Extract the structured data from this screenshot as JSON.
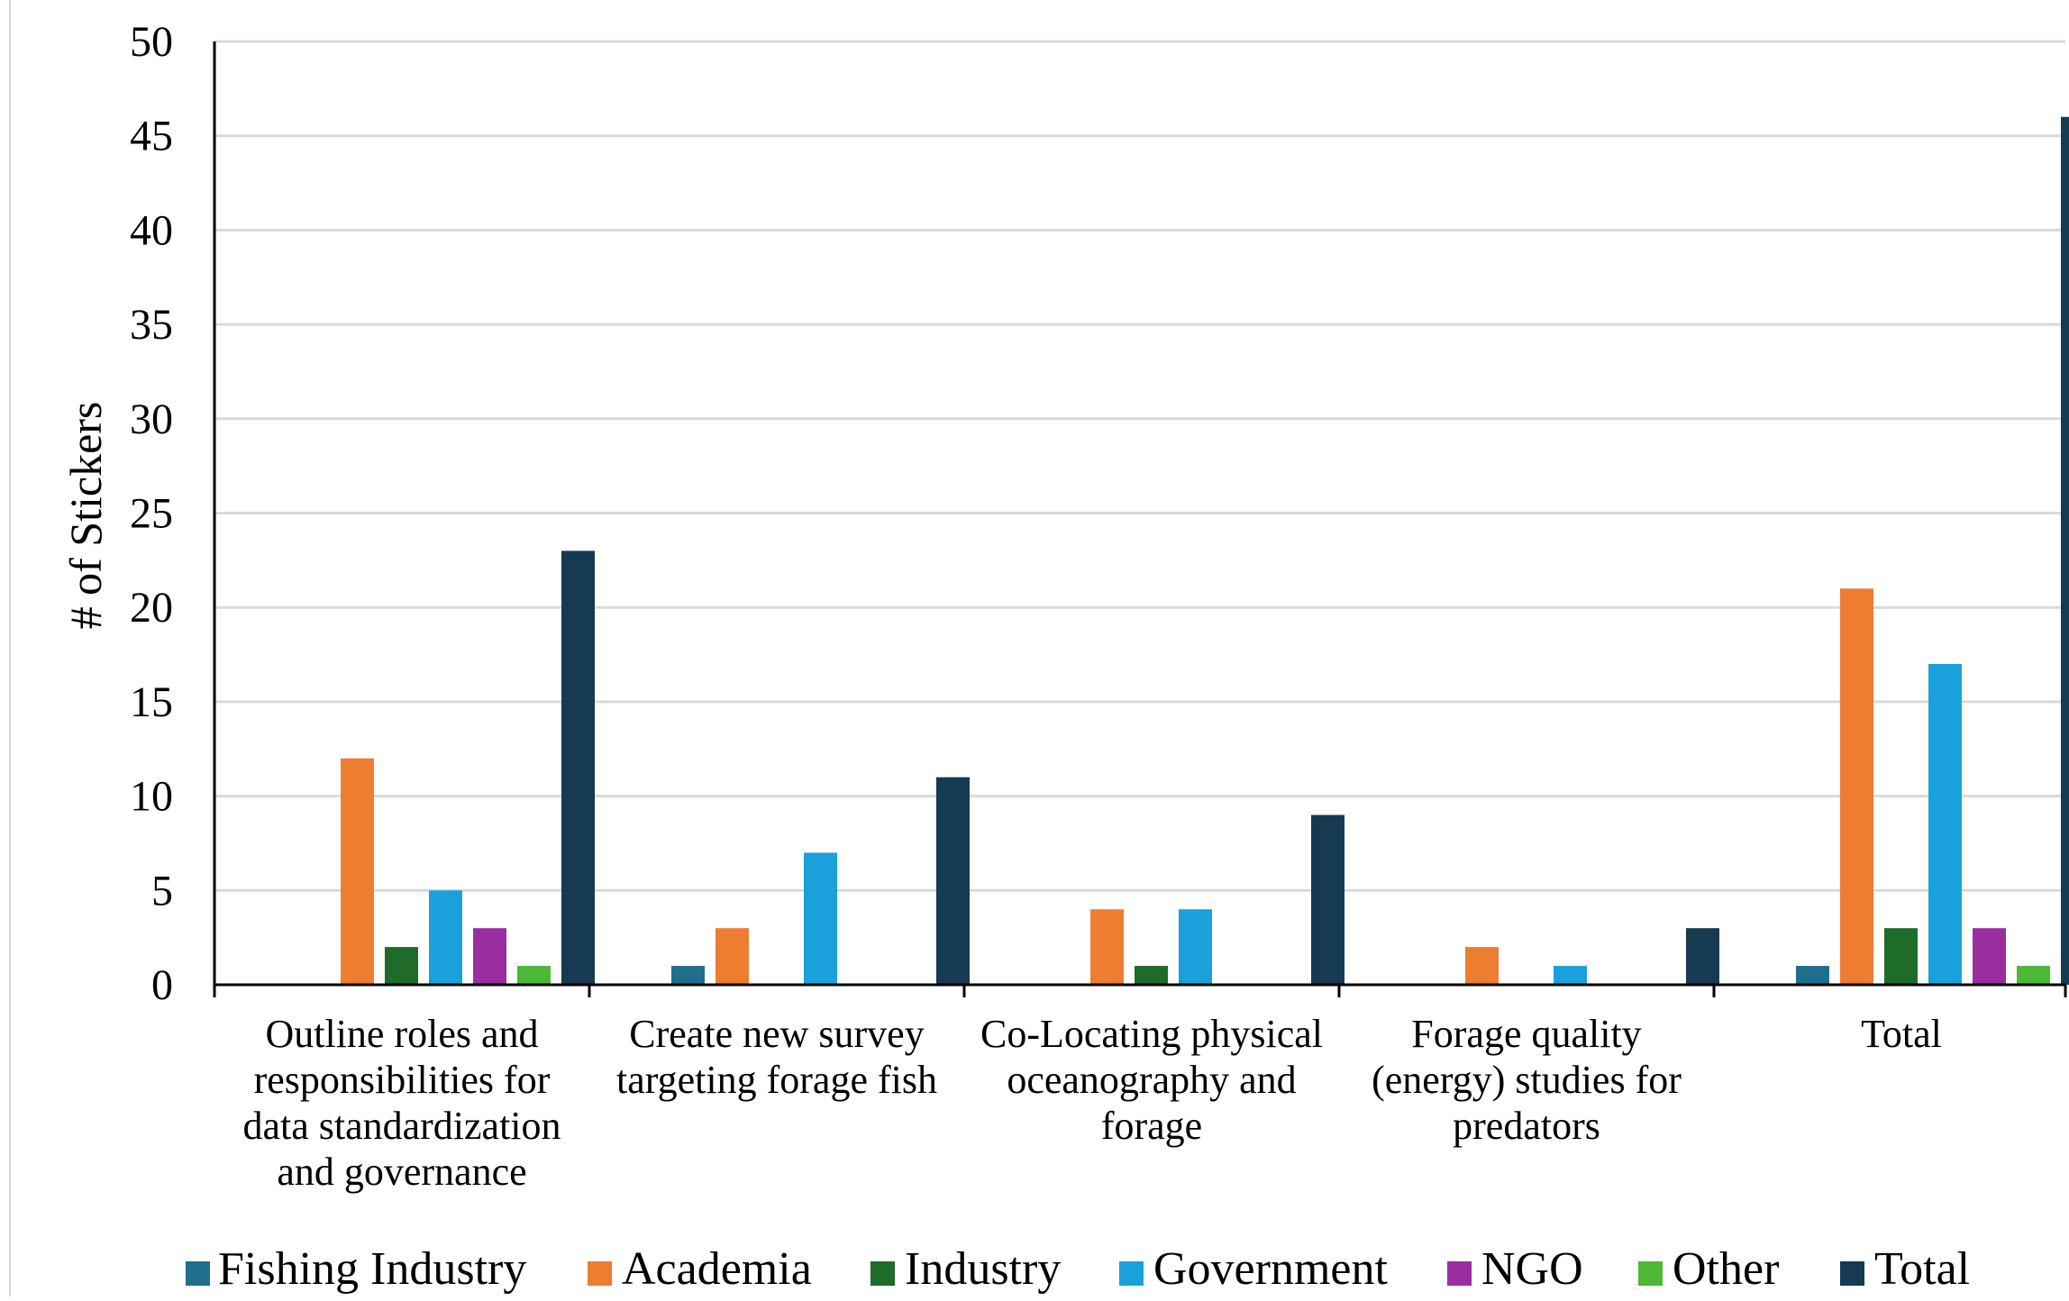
{
  "chart_data": {
    "type": "bar",
    "title": "",
    "xlabel": "",
    "ylabel": "# of Stickers",
    "ylim": [
      0,
      50
    ],
    "yticks": [
      0,
      5,
      10,
      15,
      20,
      25,
      30,
      35,
      40,
      45,
      50
    ],
    "grid": true,
    "legend_position": "bottom",
    "categories": [
      "Outline roles and responsibilities for data standardization and governance",
      "Create new survey targeting forage fish",
      "Co-Locating physical oceanography and forage",
      "Forage quality (energy) studies for predators",
      "Total"
    ],
    "category_label_lines": [
      [
        "Outline roles and",
        "responsibilities for",
        "data standardization",
        "and governance"
      ],
      [
        "Create new survey",
        "targeting forage fish"
      ],
      [
        "Co-Locating physical",
        "oceanography and",
        "forage"
      ],
      [
        "Forage quality",
        "(energy) studies for",
        "predators"
      ],
      [
        "Total"
      ]
    ],
    "series": [
      {
        "name": "Fishing Industry",
        "color": "#1f6e8c",
        "values": [
          0,
          1,
          0,
          0,
          1
        ]
      },
      {
        "name": "Academia",
        "color": "#ed7d31",
        "values": [
          12,
          3,
          4,
          2,
          21
        ]
      },
      {
        "name": "Industry",
        "color": "#1e6b2a",
        "values": [
          2,
          0,
          1,
          0,
          3
        ]
      },
      {
        "name": "Government",
        "color": "#1aa1dc",
        "values": [
          5,
          7,
          4,
          1,
          17
        ]
      },
      {
        "name": "NGO",
        "color": "#9a2ea1",
        "values": [
          3,
          0,
          0,
          0,
          3
        ]
      },
      {
        "name": "Other",
        "color": "#4cb836",
        "values": [
          1,
          0,
          0,
          0,
          1
        ]
      },
      {
        "name": "Total",
        "color": "#153a52",
        "values": [
          23,
          11,
          9,
          3,
          46
        ]
      }
    ]
  }
}
